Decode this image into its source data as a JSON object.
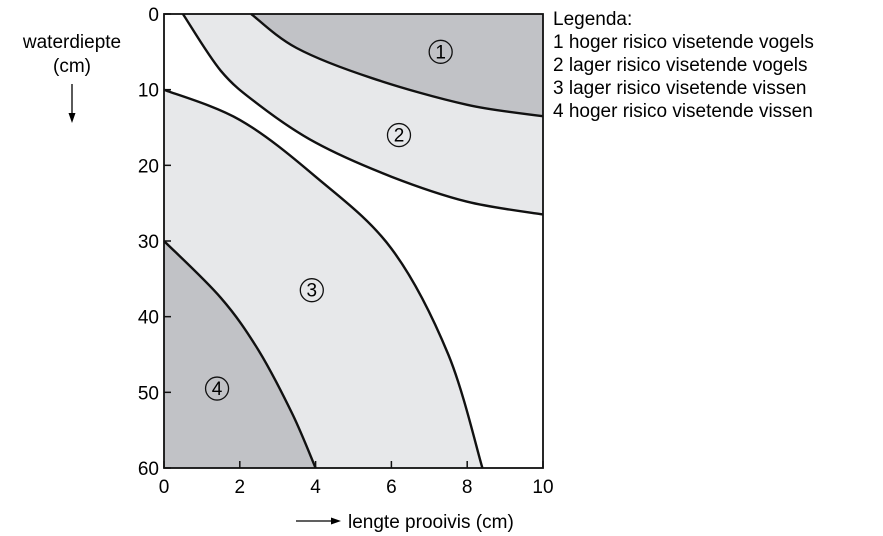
{
  "chart_data": {
    "type": "area",
    "title": "",
    "ylabel": "waterdiepte",
    "ylabel_unit": "(cm)",
    "xlabel": "lengte prooivis (cm)",
    "xlim": [
      0,
      10
    ],
    "ylim": [
      0,
      60
    ],
    "y_inverted": true,
    "x_ticks": [
      0,
      2,
      4,
      6,
      8,
      10
    ],
    "y_ticks": [
      0,
      10,
      20,
      30,
      40,
      50,
      60
    ],
    "grid": false,
    "legend_position": "top-right",
    "legend": {
      "title": "Legenda:",
      "entries": [
        "1 hoger risico visetende vogels",
        "2 lager risico visetende vogels",
        "3 lager risico visetende vissen",
        "4 hoger risico visetende vissen"
      ]
    },
    "boundaries": [
      {
        "id": "b1",
        "points": [
          [
            2.3,
            0
          ],
          [
            3.5,
            4.5
          ],
          [
            5.5,
            8.5
          ],
          [
            8.0,
            12.0
          ],
          [
            10.0,
            13.5
          ]
        ]
      },
      {
        "id": "b2",
        "points": [
          [
            0.5,
            0
          ],
          [
            1.5,
            7.5
          ],
          [
            2.5,
            12.0
          ],
          [
            4.0,
            17.0
          ],
          [
            6.0,
            21.5
          ],
          [
            8.0,
            24.8
          ],
          [
            10.0,
            26.5
          ]
        ]
      },
      {
        "id": "b3",
        "points": [
          [
            0.0,
            10.0
          ],
          [
            2.0,
            14.0
          ],
          [
            4.0,
            21.5
          ],
          [
            6.0,
            31.0
          ],
          [
            7.5,
            45.0
          ],
          [
            8.4,
            60.0
          ]
        ]
      },
      {
        "id": "b4",
        "points": [
          [
            0.0,
            30.0
          ],
          [
            1.5,
            37.5
          ],
          [
            2.5,
            44.5
          ],
          [
            3.4,
            53.0
          ],
          [
            4.0,
            60.0
          ]
        ]
      }
    ],
    "zones": [
      {
        "label": "1",
        "shade": "#c1c2c6",
        "label_pos": [
          7.3,
          5
        ]
      },
      {
        "label": "2",
        "shade": "#e7e8ea",
        "label_pos": [
          6.2,
          16
        ]
      },
      {
        "label": "3",
        "shade": "#e7e8ea",
        "label_pos": [
          3.9,
          36.5
        ]
      },
      {
        "label": "4",
        "shade": "#c1c2c6",
        "label_pos": [
          1.4,
          49.5
        ]
      }
    ],
    "colors": {
      "dark": "#c1c2c6",
      "light": "#e7e8ea",
      "line": "#111111"
    }
  }
}
